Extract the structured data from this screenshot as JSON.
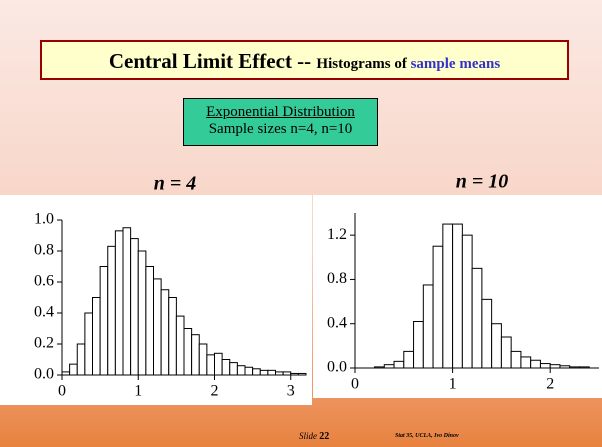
{
  "title": {
    "main": "Central Limit Effect -- ",
    "part2": "Histograms of ",
    "part3": "sample means"
  },
  "subtitle": {
    "line1": "Exponential Distribution",
    "line2": "Sample sizes n=4, n=10"
  },
  "footer": {
    "slide_word": "Slide",
    "slide_number": "22",
    "source": "Stat 35, UCLA, Ivo Dinov"
  },
  "chart_data": [
    {
      "type": "histogram",
      "title": "n = 4",
      "bins": [
        0,
        0.1,
        0.2,
        0.3,
        0.4,
        0.5,
        0.6,
        0.7,
        0.8,
        0.9,
        1.0,
        1.1,
        1.2,
        1.3,
        1.4,
        1.5,
        1.6,
        1.7,
        1.8,
        1.9,
        2.0,
        2.1,
        2.2,
        2.3,
        2.4,
        2.5,
        2.6,
        2.7,
        2.8,
        2.9,
        3.0,
        3.1,
        3.2
      ],
      "values": [
        0.02,
        0.07,
        0.2,
        0.4,
        0.5,
        0.7,
        0.83,
        0.93,
        0.95,
        0.88,
        0.8,
        0.7,
        0.62,
        0.55,
        0.5,
        0.38,
        0.3,
        0.26,
        0.2,
        0.13,
        0.14,
        0.1,
        0.08,
        0.06,
        0.05,
        0.04,
        0.03,
        0.03,
        0.02,
        0.02,
        0.01,
        0.01
      ],
      "color": "#ffffff",
      "xlim": [
        0,
        3.2
      ],
      "xticks": [
        0,
        1,
        2,
        3
      ],
      "ylim": [
        0,
        1.0
      ],
      "yticks": [
        {
          "value": 0,
          "label": "0.0"
        },
        0.2,
        0.4,
        0.6,
        0.8,
        {
          "value": 1.0,
          "label": "1.0"
        }
      ]
    },
    {
      "type": "histogram",
      "title": "n = 10",
      "bins": [
        0.2,
        0.3,
        0.4,
        0.5,
        0.6,
        0.7,
        0.8,
        0.9,
        1.0,
        1.1,
        1.2,
        1.3,
        1.4,
        1.5,
        1.6,
        1.7,
        1.8,
        1.9,
        2.0,
        2.1,
        2.2,
        2.3,
        2.4
      ],
      "values": [
        0.01,
        0.03,
        0.06,
        0.15,
        0.42,
        0.75,
        1.1,
        1.3,
        1.3,
        1.2,
        0.9,
        0.62,
        0.4,
        0.28,
        0.15,
        0.1,
        0.07,
        0.04,
        0.03,
        0.02,
        0.01,
        0.01
      ],
      "color": "#ffffff",
      "xlim": [
        0,
        2.5
      ],
      "xticks": [
        0,
        1,
        2
      ],
      "ylim": [
        0,
        1.4
      ],
      "yticks": [
        {
          "value": 0,
          "label": "0.0"
        },
        0.4,
        0.8,
        1.2
      ]
    }
  ]
}
